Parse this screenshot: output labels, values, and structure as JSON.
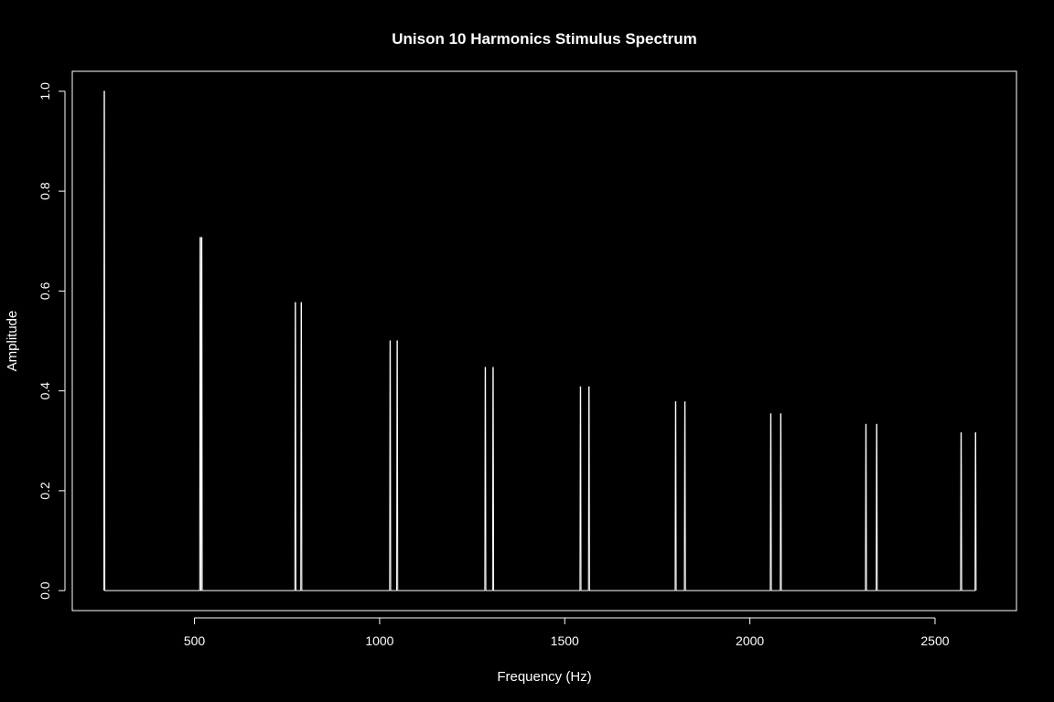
{
  "chart_data": {
    "type": "line",
    "title": "Unison 10 Harmonics Stimulus Spectrum",
    "xlabel": "Frequency (Hz)",
    "ylabel": "Amplitude",
    "xlim": [
      170,
      2720
    ],
    "ylim": [
      -0.04,
      1.04
    ],
    "xticks": [
      500,
      1000,
      1500,
      2000,
      2500
    ],
    "yticks": [
      0.0,
      0.2,
      0.4,
      0.6,
      0.8,
      1.0
    ],
    "xtick_labels": [
      "500",
      "1000",
      "1500",
      "2000",
      "2500"
    ],
    "ytick_labels": [
      "0.0",
      "0.2",
      "0.4",
      "0.6",
      "0.8",
      "1.0"
    ],
    "x": [
      255,
      256,
      257,
      258,
      514,
      515,
      516,
      517,
      518,
      519,
      520,
      521,
      771,
      772,
      773,
      774,
      787,
      788,
      789,
      790,
      1027,
      1028,
      1029,
      1030,
      1046,
      1047,
      1048,
      1049,
      1284,
      1285,
      1286,
      1287,
      1305,
      1306,
      1307,
      1308,
      1541,
      1542,
      1543,
      1544,
      1564,
      1565,
      1566,
      1567,
      1798,
      1799,
      1800,
      1801,
      1823,
      1824,
      1825,
      1826,
      2055,
      2056,
      2057,
      2058,
      2082,
      2083,
      2084,
      2085,
      2312,
      2313,
      2314,
      2315,
      2341,
      2342,
      2343,
      2344,
      2569,
      2570,
      2571,
      2572,
      2608,
      2609,
      2610,
      2611
    ],
    "y": [
      0,
      1.0,
      1.0,
      0,
      0,
      0.707,
      0.707,
      0,
      0,
      0.707,
      0.707,
      0,
      0,
      0.577,
      0.577,
      0,
      0,
      0.577,
      0.577,
      0,
      0,
      0.5,
      0.5,
      0,
      0,
      0.5,
      0.5,
      0,
      0,
      0.447,
      0.447,
      0,
      0,
      0.447,
      0.447,
      0,
      0,
      0.408,
      0.408,
      0,
      0,
      0.408,
      0.408,
      0,
      0,
      0.378,
      0.378,
      0,
      0,
      0.378,
      0.378,
      0,
      0,
      0.354,
      0.354,
      0,
      0,
      0.354,
      0.354,
      0,
      0,
      0.333,
      0.333,
      0,
      0,
      0.333,
      0.333,
      0,
      0,
      0.316,
      0.316,
      0,
      0,
      0.316,
      0.316,
      0
    ],
    "grid": false,
    "colors": {
      "background": "#000000",
      "foreground": "#ffffff"
    }
  }
}
